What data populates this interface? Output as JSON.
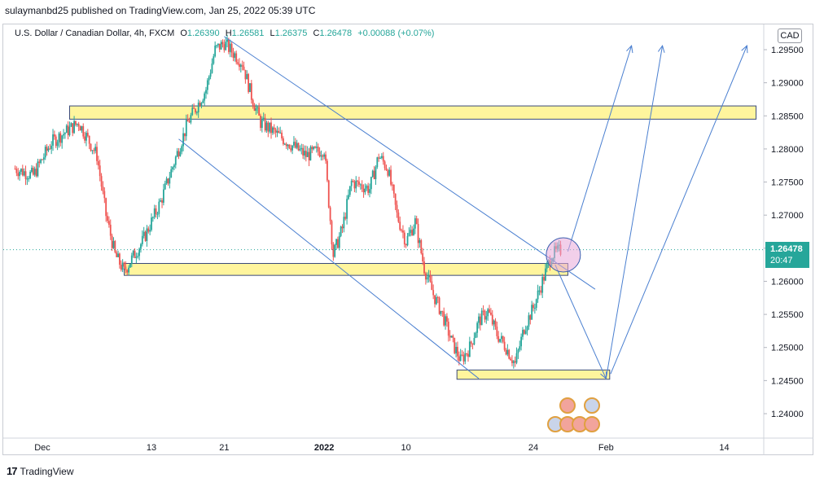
{
  "publisher_line": "sulaymanbd25 published on TradingView.com, Jan 25, 2022 05:39 UTC",
  "legend": {
    "symbol": "U.S. Dollar / Canadian Dollar, 4h, FXCM",
    "open_label": "O",
    "open": "1.26390",
    "high_label": "H",
    "high": "1.26581",
    "low_label": "L",
    "low": "1.26375",
    "close_label": "C",
    "close": "1.26478",
    "change": "+0.00088 (+0.07%)"
  },
  "currency": "CAD",
  "last_price": {
    "value": "1.26478",
    "countdown": "20:47"
  },
  "footer_brand": "TradingView",
  "colors": {
    "up": "#26a69a",
    "down": "#ef5350",
    "zone_fill": "#fff59d",
    "trend": "#4a7fd0",
    "highlight": "#e7a8d8"
  },
  "chart_data": {
    "type": "candlestick",
    "title": "U.S. Dollar / Canadian Dollar, 4h, FXCM",
    "y_ticks": [
      "1.29500",
      "1.29000",
      "1.28500",
      "1.28000",
      "1.27500",
      "1.27000",
      "1.26500",
      "1.26000",
      "1.25500",
      "1.25000",
      "1.24500",
      "1.24000"
    ],
    "ylim": [
      1.237,
      1.298
    ],
    "x_ticks": [
      {
        "label": "Dec",
        "day": 0
      },
      {
        "label": "13",
        "day": 12
      },
      {
        "label": "21",
        "day": 20
      },
      {
        "label": "2022",
        "day": 31
      },
      {
        "label": "10",
        "day": 40
      },
      {
        "label": "24",
        "day": 54
      },
      {
        "label": "Feb",
        "day": 62
      },
      {
        "label": "14",
        "day": 75
      }
    ],
    "xlim_days": [
      -3,
      81
    ],
    "price_path": [
      [
        -3,
        1.277
      ],
      [
        -1,
        1.276
      ],
      [
        1,
        1.281
      ],
      [
        3,
        1.283
      ],
      [
        4,
        1.284
      ],
      [
        6,
        1.279
      ],
      [
        7,
        1.27
      ],
      [
        8,
        1.264
      ],
      [
        9,
        1.2615
      ],
      [
        11,
        1.266
      ],
      [
        13,
        1.272
      ],
      [
        14,
        1.276
      ],
      [
        16,
        1.284
      ],
      [
        18,
        1.289
      ],
      [
        19,
        1.295
      ],
      [
        20,
        1.296
      ],
      [
        22,
        1.293
      ],
      [
        23,
        1.288
      ],
      [
        24,
        1.284
      ],
      [
        25,
        1.283
      ],
      [
        27,
        1.281
      ],
      [
        29,
        1.279
      ],
      [
        31,
        1.28
      ],
      [
        32,
        1.264
      ],
      [
        33,
        1.268
      ],
      [
        34,
        1.275
      ],
      [
        36,
        1.274
      ],
      [
        37,
        1.279
      ],
      [
        38,
        1.277
      ],
      [
        39,
        1.27
      ],
      [
        40,
        1.266
      ],
      [
        41,
        1.269
      ],
      [
        42,
        1.262
      ],
      [
        43,
        1.258
      ],
      [
        44,
        1.255
      ],
      [
        45,
        1.251
      ],
      [
        46,
        1.248
      ],
      [
        47,
        1.25
      ],
      [
        48,
        1.254
      ],
      [
        49,
        1.2555
      ],
      [
        50,
        1.252
      ],
      [
        51,
        1.25
      ],
      [
        52,
        1.2475
      ],
      [
        53,
        1.253
      ],
      [
        54,
        1.256
      ],
      [
        55,
        1.26
      ],
      [
        56,
        1.264
      ],
      [
        57,
        1.2647
      ]
    ],
    "zones": [
      {
        "from_day": 3.0,
        "to_day": 78.5,
        "low": 1.2845,
        "high": 1.2865
      },
      {
        "from_day": 9.0,
        "to_day": 57.8,
        "low": 1.2609,
        "high": 1.2627
      },
      {
        "from_day": 45.6,
        "to_day": 62.4,
        "low": 1.2452,
        "high": 1.2466
      }
    ],
    "trendlines": [
      {
        "d1": 20.0,
        "p1": 1.297,
        "d2": 60.8,
        "p2": 1.2588
      },
      {
        "d1": 15.0,
        "p1": 1.2815,
        "d2": 48.0,
        "p2": 1.2453
      }
    ],
    "projections": [
      {
        "d1": 56.4,
        "p1": 1.2625,
        "d2": 62.0,
        "p2": 1.2453
      },
      {
        "d1": 62.0,
        "p1": 1.2453,
        "d2": 68.2,
        "p2": 1.2956
      },
      {
        "d1": 57.8,
        "p1": 1.2645,
        "d2": 64.8,
        "p2": 1.2956
      },
      {
        "d1": 62.5,
        "p1": 1.246,
        "d2": 77.5,
        "p2": 1.2956
      }
    ],
    "highlight_circle": {
      "day": 57.3,
      "price": 1.264
    },
    "last_price_line": 1.26478
  }
}
